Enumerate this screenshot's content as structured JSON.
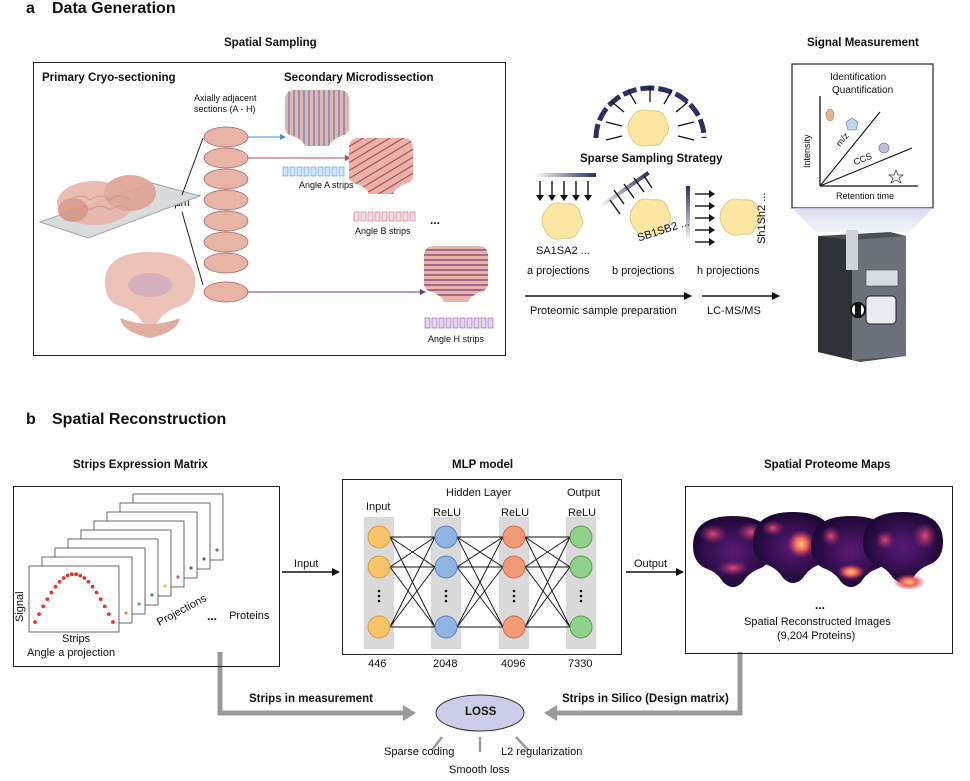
{
  "panel_a": {
    "letter": "a",
    "title": "Data Generation",
    "spatial_sampling": "Spatial Sampling",
    "primary": "Primary Cryo-sectioning",
    "secondary": "Secondary Microdissection",
    "axially": "Axially adjacent",
    "sections": "sections (A - H)",
    "thickness": "80 μm",
    "angle_a": "Angle A strips",
    "angle_b": "Angle B strips",
    "angle_h": "Angle H strips",
    "ellipsis": "...",
    "sparse": "Sparse Sampling Strategy",
    "a_proj": "a projections",
    "b_proj": "b projections",
    "h_proj": "h projections",
    "sa": "SA1SA2 ...",
    "sb": "SB1SB2 ...",
    "sh": "Sh1Sh2 ...",
    "prep": "Proteomic sample preparation",
    "lcms": "LC-MS/MS",
    "signal_measurement": "Signal Measurement",
    "identification": "Identification",
    "quantification": "Quantification",
    "intensity": "Intensity",
    "mz": "m/z",
    "ccs": "CCS",
    "retention": "Retention time"
  },
  "panel_b": {
    "letter": "b",
    "title": "Spatial Reconstruction",
    "strips_matrix": "Strips Expression Matrix",
    "signal": "Signal",
    "strips": "Strips",
    "angle_a_proj": "Angle a projection",
    "projections": "Projections",
    "dots": "...",
    "proteins": "Proteins",
    "input_arrow": "Input",
    "mlp": "MLP model",
    "input": "Input",
    "hidden": "Hidden Layer",
    "output": "Output",
    "relu": "ReLU",
    "n_input": "446",
    "n_h1": "2048",
    "n_h2": "4096",
    "n_out": "7330",
    "output_arrow": "Output",
    "maps": "Spatial Proteome Maps",
    "recon": "Spatial Reconstructed Images",
    "n_proteins": "(9,204 Proteins)",
    "strips_measure": "Strips in measurement",
    "strips_silico": "Strips in Silico (Design matrix)",
    "loss": "LOSS",
    "sparse_coding": "Sparse coding",
    "smooth_loss": "Smooth loss",
    "l2": "L2 regularization"
  },
  "colors": {
    "brain": "#e8b4a8",
    "strip_blue": "#5a86c5",
    "strip_red": "#c0546a",
    "node_input": "#f8c46a",
    "node_h1": "#8fb4e2",
    "node_h2": "#f29a78",
    "node_out": "#90d08a",
    "column": "#d9d9d9",
    "gray_arrow": "#9a9a9a",
    "loss_fill": "#c9cde8"
  }
}
